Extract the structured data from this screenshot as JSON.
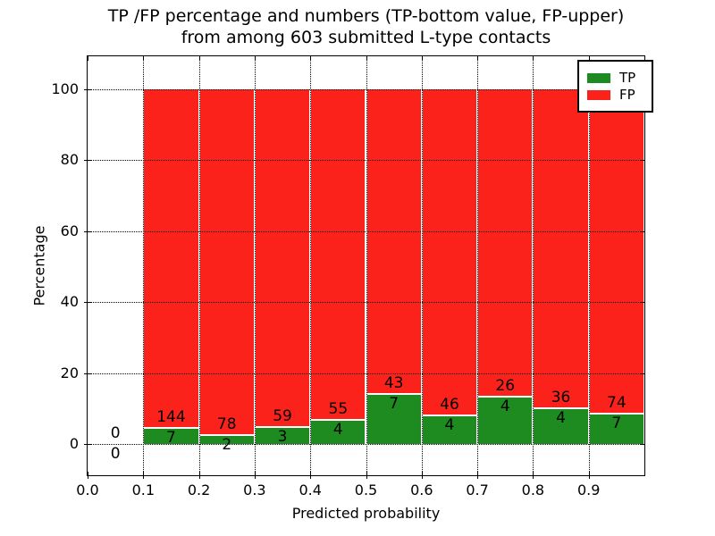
{
  "chart_data": {
    "type": "bar",
    "subtype": "stacked-percentage-histogram",
    "title_line1": "TP /FP percentage and numbers (TP-bottom value, FP-upper)",
    "title_line2": "from among 603 submitted L-type contacts",
    "xlabel": "Predicted probability",
    "ylabel": "Percentage",
    "x_ticks": [
      "0.0",
      "0.1",
      "0.2",
      "0.3",
      "0.4",
      "0.5",
      "0.6",
      "0.7",
      "0.8",
      "0.9"
    ],
    "y_ticks": [
      0,
      20,
      40,
      60,
      80,
      100
    ],
    "xlim": [
      0.0,
      1.0
    ],
    "ylim": [
      -9,
      110
    ],
    "grid": "dotted black, drawn above bars",
    "legend_position": "upper right",
    "total_contacts": 603,
    "colors": {
      "tp": "#1e8b20",
      "fp": "#fb221c",
      "grid": "#000000",
      "text": "#000000"
    },
    "legend": [
      {
        "label": "TP",
        "color": "#1e8b20"
      },
      {
        "label": "FP",
        "color": "#fb221c"
      }
    ],
    "bins": [
      {
        "range": "0.0-0.1",
        "tp": 0,
        "fp": 0,
        "tp_pct": 0.0
      },
      {
        "range": "0.1-0.2",
        "tp": 7,
        "fp": 144,
        "tp_pct": 4.6
      },
      {
        "range": "0.2-0.3",
        "tp": 2,
        "fp": 78,
        "tp_pct": 2.5
      },
      {
        "range": "0.3-0.4",
        "tp": 3,
        "fp": 59,
        "tp_pct": 4.8
      },
      {
        "range": "0.4-0.5",
        "tp": 4,
        "fp": 55,
        "tp_pct": 6.8
      },
      {
        "range": "0.5-0.6",
        "tp": 7,
        "fp": 43,
        "tp_pct": 14.0
      },
      {
        "range": "0.6-0.7",
        "tp": 4,
        "fp": 46,
        "tp_pct": 8.0
      },
      {
        "range": "0.7-0.8",
        "tp": 4,
        "fp": 26,
        "tp_pct": 13.3
      },
      {
        "range": "0.8-0.9",
        "tp": 4,
        "fp": 36,
        "tp_pct": 10.0
      },
      {
        "range": "0.9-1.0",
        "tp": 7,
        "fp": 74,
        "tp_pct": 8.6
      }
    ]
  }
}
